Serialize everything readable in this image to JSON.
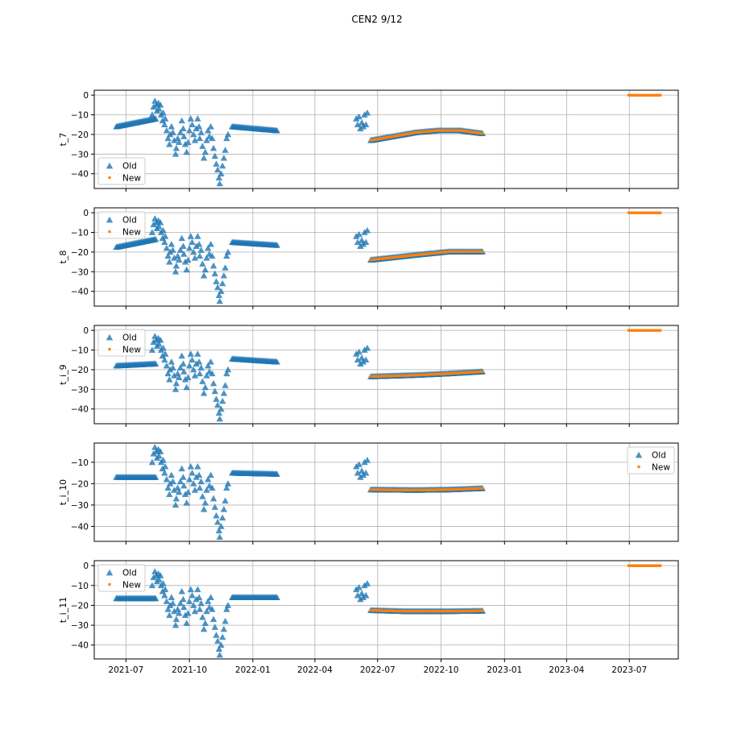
{
  "figure": {
    "title": "CEN2 9/12"
  },
  "shared_x": {
    "type": "date",
    "ticks": [
      "2021-07",
      "2021-10",
      "2022-01",
      "2022-04",
      "2022-07",
      "2022-10",
      "2023-01",
      "2023-04",
      "2023-07"
    ],
    "range": [
      "2021-05-16",
      "2023-09-10"
    ]
  },
  "colors": {
    "old": "#1f77b4",
    "new": "#ff7f0e",
    "grid": "#b0b0b0"
  },
  "chart_data": [
    {
      "type": "scatter",
      "ylabel": "t_7",
      "ylim": [
        -47.5,
        2.5
      ],
      "yticks": [
        0,
        -10,
        -20,
        -30,
        -40
      ],
      "grid": true,
      "legend": "lower-left",
      "legend_entries": {
        "old": "Old",
        "new": "New"
      },
      "old_segments": [
        {
          "start": "2021-06-17",
          "end": "2021-08-13",
          "from": -16,
          "to": -12
        },
        {
          "start": "2021-12-02",
          "end": "2022-02-05",
          "from": -16,
          "to": -18
        },
        {
          "start": "2022-06-21",
          "end": "2022-11-30",
          "curve": [
            [
              0,
              -23
            ],
            [
              0.4,
              -19
            ],
            [
              0.6,
              -18
            ],
            [
              0.8,
              -18
            ],
            [
              1,
              -19.5
            ]
          ]
        }
      ],
      "new_segments": [
        {
          "start": "2022-06-21",
          "end": "2022-11-30",
          "curve": [
            [
              0,
              -23
            ],
            [
              0.4,
              -19
            ],
            [
              0.6,
              -18
            ],
            [
              0.8,
              -18
            ],
            [
              1,
              -19.5
            ]
          ]
        },
        {
          "start": "2023-06-30",
          "end": "2023-08-15",
          "from": 0,
          "to": 0
        }
      ]
    },
    {
      "type": "scatter",
      "ylabel": "t_8",
      "ylim": [
        -47.5,
        2.5
      ],
      "yticks": [
        0,
        -10,
        -20,
        -30,
        -40
      ],
      "grid": true,
      "legend": "upper-left",
      "legend_entries": {
        "old": "Old",
        "new": "New"
      },
      "old_segments": [
        {
          "start": "2021-06-17",
          "end": "2021-08-13",
          "from": -17.5,
          "to": -13.5
        },
        {
          "start": "2021-12-02",
          "end": "2022-02-05",
          "from": -15,
          "to": -16.5
        },
        {
          "start": "2022-06-21",
          "end": "2022-11-30",
          "curve": [
            [
              0,
              -24
            ],
            [
              0.4,
              -21.5
            ],
            [
              0.7,
              -19.8
            ],
            [
              1,
              -19.8
            ]
          ]
        }
      ],
      "new_segments": [
        {
          "start": "2022-06-21",
          "end": "2022-11-30",
          "curve": [
            [
              0,
              -24
            ],
            [
              0.4,
              -21.5
            ],
            [
              0.7,
              -19.8
            ],
            [
              1,
              -19.8
            ]
          ]
        },
        {
          "start": "2023-06-30",
          "end": "2023-08-15",
          "from": 0,
          "to": 0
        }
      ]
    },
    {
      "type": "scatter",
      "ylabel": "t_i_9",
      "ylim": [
        -47.5,
        2.5
      ],
      "yticks": [
        0,
        -10,
        -20,
        -30,
        -40
      ],
      "grid": true,
      "legend": "upper-left",
      "legend_entries": {
        "old": "Old",
        "new": "New"
      },
      "old_segments": [
        {
          "start": "2021-06-17",
          "end": "2021-08-13",
          "from": -18,
          "to": -17
        },
        {
          "start": "2021-12-02",
          "end": "2022-02-05",
          "from": -14.5,
          "to": -16
        },
        {
          "start": "2022-06-21",
          "end": "2022-11-30",
          "curve": [
            [
              0,
              -23.5
            ],
            [
              0.4,
              -22.8
            ],
            [
              0.7,
              -22
            ],
            [
              1,
              -21
            ]
          ]
        }
      ],
      "new_segments": [
        {
          "start": "2022-06-21",
          "end": "2022-11-30",
          "curve": [
            [
              0,
              -23.5
            ],
            [
              0.4,
              -22.8
            ],
            [
              0.7,
              -22
            ],
            [
              1,
              -21
            ]
          ]
        },
        {
          "start": "2023-06-30",
          "end": "2023-08-15",
          "from": 0,
          "to": 0
        }
      ]
    },
    {
      "type": "scatter",
      "ylabel": "t_i_10",
      "ylim": [
        -47,
        -1
      ],
      "yticks": [
        -10,
        -20,
        -30,
        -40
      ],
      "grid": true,
      "legend": "upper-right",
      "legend_entries": {
        "old": "Old",
        "new": "New"
      },
      "old_segments": [
        {
          "start": "2021-06-17",
          "end": "2021-08-13",
          "from": -17,
          "to": -17
        },
        {
          "start": "2021-12-02",
          "end": "2022-02-05",
          "from": -15,
          "to": -15.5
        },
        {
          "start": "2022-06-21",
          "end": "2022-11-30",
          "curve": [
            [
              0,
              -22.8
            ],
            [
              0.4,
              -23
            ],
            [
              0.7,
              -22.8
            ],
            [
              1,
              -22.2
            ]
          ]
        }
      ],
      "new_segments": [
        {
          "start": "2022-06-21",
          "end": "2022-11-30",
          "curve": [
            [
              0,
              -22.8
            ],
            [
              0.4,
              -23
            ],
            [
              0.7,
              -22.8
            ],
            [
              1,
              -22.2
            ]
          ]
        }
      ]
    },
    {
      "type": "scatter",
      "ylabel": "t_i_11",
      "ylim": [
        -47,
        2.5
      ],
      "yticks": [
        0,
        -10,
        -20,
        -30,
        -40
      ],
      "grid": true,
      "legend": "upper-left",
      "legend_entries": {
        "old": "Old",
        "new": "New"
      },
      "old_segments": [
        {
          "start": "2021-06-17",
          "end": "2021-08-13",
          "from": -16.5,
          "to": -16.5
        },
        {
          "start": "2021-12-02",
          "end": "2022-02-05",
          "from": -16,
          "to": -16
        },
        {
          "start": "2022-06-21",
          "end": "2022-11-30",
          "curve": [
            [
              0,
              -22.5
            ],
            [
              0.3,
              -23
            ],
            [
              0.7,
              -23
            ],
            [
              1,
              -22.8
            ]
          ]
        }
      ],
      "new_segments": [
        {
          "start": "2022-06-21",
          "end": "2022-11-30",
          "curve": [
            [
              0,
              -22.5
            ],
            [
              0.3,
              -23
            ],
            [
              0.7,
              -23
            ],
            [
              1,
              -22.8
            ]
          ]
        },
        {
          "start": "2023-06-30",
          "end": "2023-08-15",
          "from": 0,
          "to": 0
        }
      ]
    }
  ],
  "scatter_old_points": [
    [
      "2021-08-08",
      -10
    ],
    [
      "2021-08-10",
      -6
    ],
    [
      "2021-08-12",
      -3
    ],
    [
      "2021-08-14",
      -5
    ],
    [
      "2021-08-15",
      -8
    ],
    [
      "2021-08-17",
      -4
    ],
    [
      "2021-08-18",
      -7
    ],
    [
      "2021-08-20",
      -5
    ],
    [
      "2021-08-21",
      -10
    ],
    [
      "2021-08-23",
      -13
    ],
    [
      "2021-08-24",
      -9
    ],
    [
      "2021-08-26",
      -15
    ],
    [
      "2021-08-27",
      -12
    ],
    [
      "2021-08-29",
      -18
    ],
    [
      "2021-08-31",
      -22
    ],
    [
      "2021-09-02",
      -25
    ],
    [
      "2021-09-03",
      -20
    ],
    [
      "2021-09-05",
      -16
    ],
    [
      "2021-09-07",
      -19
    ],
    [
      "2021-09-09",
      -23
    ],
    [
      "2021-09-11",
      -30
    ],
    [
      "2021-09-12",
      -27
    ],
    [
      "2021-09-14",
      -22
    ],
    [
      "2021-09-16",
      -24
    ],
    [
      "2021-09-18",
      -19
    ],
    [
      "2021-09-20",
      -13
    ],
    [
      "2021-09-22",
      -17
    ],
    [
      "2021-09-23",
      -21
    ],
    [
      "2021-09-25",
      -25
    ],
    [
      "2021-09-27",
      -29
    ],
    [
      "2021-09-29",
      -24
    ],
    [
      "2021-10-01",
      -18
    ],
    [
      "2021-10-03",
      -12
    ],
    [
      "2021-10-05",
      -15
    ],
    [
      "2021-10-07",
      -20
    ],
    [
      "2021-10-09",
      -23
    ],
    [
      "2021-10-11",
      -17
    ],
    [
      "2021-10-13",
      -12
    ],
    [
      "2021-10-15",
      -16
    ],
    [
      "2021-10-16",
      -22
    ],
    [
      "2021-10-18",
      -19
    ],
    [
      "2021-10-20",
      -26
    ],
    [
      "2021-10-22",
      -32
    ],
    [
      "2021-10-24",
      -29
    ],
    [
      "2021-10-26",
      -23
    ],
    [
      "2021-10-28",
      -18
    ],
    [
      "2021-10-30",
      -21
    ],
    [
      "2021-11-01",
      -16
    ],
    [
      "2021-11-03",
      -22
    ],
    [
      "2021-11-05",
      -27
    ],
    [
      "2021-11-07",
      -31
    ],
    [
      "2021-11-09",
      -35
    ],
    [
      "2021-11-11",
      -38
    ],
    [
      "2021-11-13",
      -42
    ],
    [
      "2021-11-14",
      -45
    ],
    [
      "2021-11-16",
      -40
    ],
    [
      "2021-11-18",
      -36
    ],
    [
      "2021-11-20",
      -32
    ],
    [
      "2021-11-22",
      -28
    ],
    [
      "2021-11-24",
      -22
    ],
    [
      "2021-11-26",
      -20
    ],
    [
      "2022-05-31",
      -12
    ],
    [
      "2022-06-02",
      -15
    ],
    [
      "2022-06-04",
      -11
    ],
    [
      "2022-06-06",
      -17
    ],
    [
      "2022-06-08",
      -14
    ],
    [
      "2022-06-10",
      -16
    ],
    [
      "2022-06-12",
      -10
    ],
    [
      "2022-06-14",
      -15
    ],
    [
      "2022-06-16",
      -9
    ]
  ]
}
